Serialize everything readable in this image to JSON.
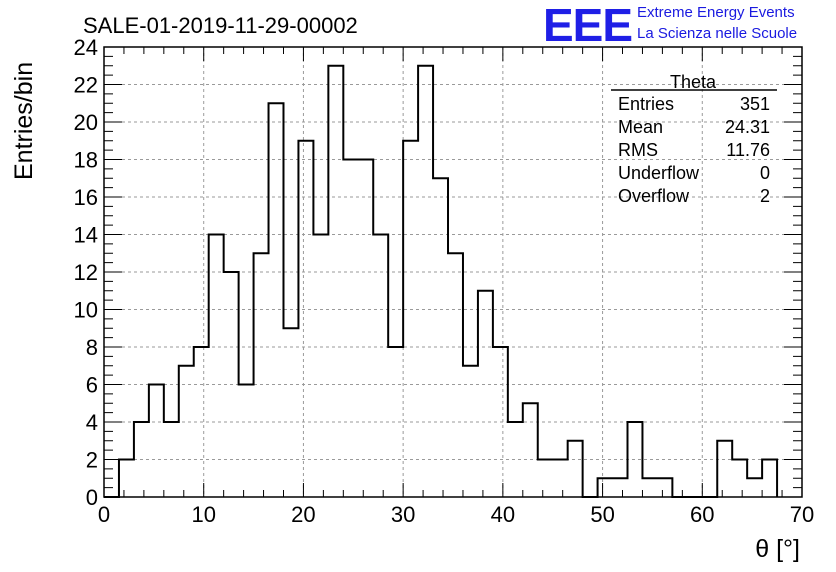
{
  "header": {
    "logo_text": "EEE",
    "logo_line1": "Extreme Energy Events",
    "logo_line2": "La Scienza nelle Scuole",
    "logo_color": "#1f1fe6"
  },
  "stats_box": {
    "title": "Theta",
    "rows": [
      {
        "label": "Entries",
        "value": "351"
      },
      {
        "label": "Mean",
        "value": "24.31"
      },
      {
        "label": "RMS",
        "value": "11.76"
      },
      {
        "label": "Underflow",
        "value": "0"
      },
      {
        "label": "Overflow",
        "value": "2"
      }
    ]
  },
  "chart_data": {
    "type": "bar",
    "style": "step-histogram",
    "title": "SALE-01-2019-11-29-00002",
    "xlabel": "θ [°]",
    "ylabel": "Entries/bin",
    "xlim": [
      0,
      70
    ],
    "ylim": [
      0,
      24
    ],
    "x_ticks": [
      0,
      10,
      20,
      30,
      40,
      50,
      60,
      70
    ],
    "y_ticks": [
      0,
      2,
      4,
      6,
      8,
      10,
      12,
      14,
      16,
      18,
      20,
      22,
      24
    ],
    "grid": true,
    "bin_edges": [
      0,
      1.5,
      3,
      4.5,
      6,
      7.5,
      9,
      10.5,
      12,
      13.5,
      15,
      16.5,
      18,
      19.5,
      21,
      22.5,
      24,
      25.5,
      27,
      28.5,
      30,
      31.5,
      33,
      34.5,
      36,
      37.5,
      39,
      40.5,
      42,
      43.5,
      45,
      46.5,
      48,
      49.5,
      51,
      52.5,
      54,
      55.5,
      57,
      58.5,
      60,
      61.5,
      63,
      64.5,
      66,
      67.5
    ],
    "values": [
      0,
      2,
      4,
      6,
      4,
      7,
      8,
      14,
      12,
      6,
      13,
      21,
      9,
      19,
      14,
      23,
      18,
      18,
      14,
      8,
      19,
      23,
      17,
      13,
      7,
      11,
      8,
      4,
      5,
      2,
      2,
      3,
      0,
      1,
      1,
      4,
      1,
      1,
      0,
      0,
      0,
      3,
      2,
      1,
      2
    ],
    "line_color": "#000000"
  }
}
